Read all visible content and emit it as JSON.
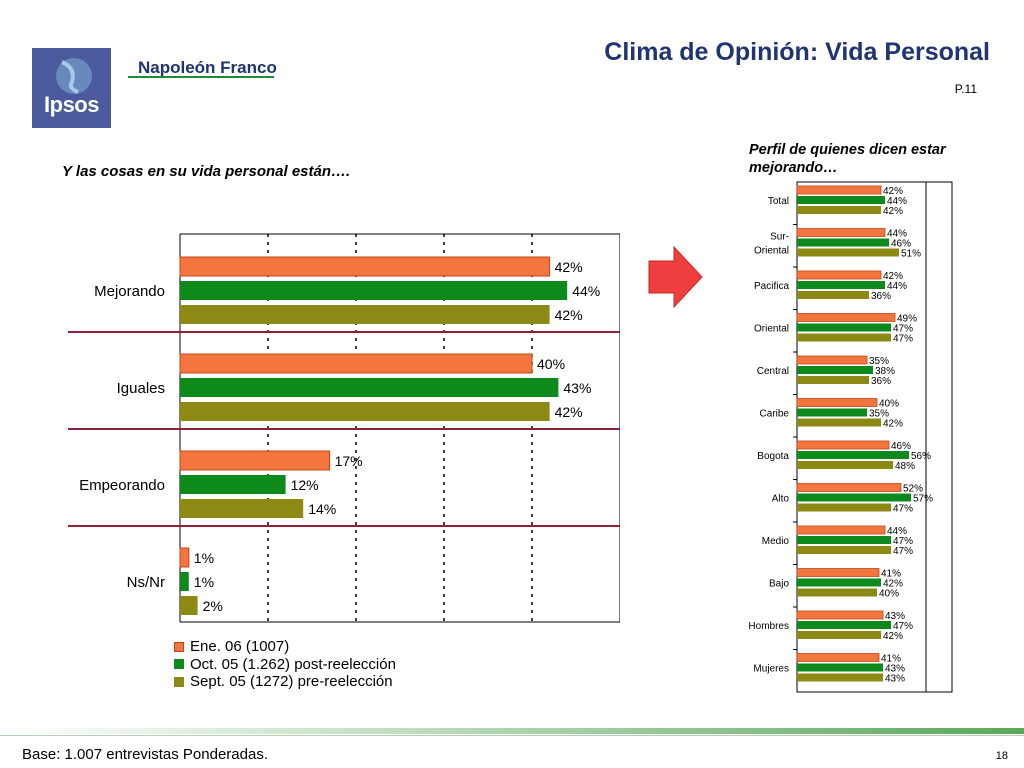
{
  "brand": {
    "logo_text": "Ipsos",
    "name": "Napoleón Franco"
  },
  "header": {
    "title": "Clima de Opinión: Vida Personal",
    "page": "P.11"
  },
  "main_question": "Y las cosas en su vida personal están….",
  "profile_title": "Perfil de quienes dicen estar mejorando…",
  "footer": {
    "base": "Base: 1.007 entrevistas Ponderadas.",
    "slide_number": "18"
  },
  "colors": {
    "series1": "#f3763f",
    "series2": "#0e8a1d",
    "series3": "#8c8a14",
    "divider": "#8b2436",
    "arrow": "#ee3e3e"
  },
  "chart_data": [
    {
      "type": "bar",
      "orientation": "horizontal",
      "categories": [
        "Mejorando",
        "Iguales",
        "Empeorando",
        "Ns/Nr"
      ],
      "series": [
        {
          "name": "Ene. 06 (1007)",
          "values": [
            42,
            40,
            17,
            1
          ]
        },
        {
          "name": "Oct. 05 (1.262) post-reelección",
          "values": [
            44,
            43,
            12,
            1
          ]
        },
        {
          "name": "Sept. 05 (1272) pre-reelección",
          "values": [
            42,
            42,
            14,
            2
          ]
        }
      ],
      "value_suffix": "%",
      "xlim": [
        0,
        50
      ],
      "legend_position": "bottom"
    },
    {
      "type": "bar",
      "orientation": "horizontal",
      "categories": [
        "Total",
        "Sur-Oriental",
        "Pacifica",
        "Oriental",
        "Central",
        "Caribe",
        "Bogota",
        "Alto",
        "Medio",
        "Bajo",
        "Hombres",
        "Mujeres"
      ],
      "category_lines": [
        [
          "Total"
        ],
        [
          "Sur-",
          "Oriental"
        ],
        [
          "Pacifica"
        ],
        [
          "Oriental"
        ],
        [
          "Central"
        ],
        [
          "Caribe"
        ],
        [
          "Bogota"
        ],
        [
          "Alto"
        ],
        [
          "Medio"
        ],
        [
          "Bajo"
        ],
        [
          "Hombres"
        ],
        [
          "Mujeres"
        ]
      ],
      "series": [
        {
          "name": "Ene. 06 (1007)",
          "values": [
            42,
            44,
            42,
            49,
            35,
            40,
            46,
            52,
            44,
            41,
            43,
            41
          ]
        },
        {
          "name": "Oct. 05 (1.262) post-reelección",
          "values": [
            44,
            46,
            44,
            47,
            38,
            35,
            56,
            57,
            47,
            42,
            47,
            43
          ]
        },
        {
          "name": "Sept. 05 (1272) pre-reelección",
          "values": [
            42,
            51,
            36,
            47,
            36,
            42,
            48,
            47,
            47,
            40,
            42,
            43
          ]
        }
      ],
      "value_suffix": "%",
      "xlim": [
        0,
        60
      ]
    }
  ]
}
